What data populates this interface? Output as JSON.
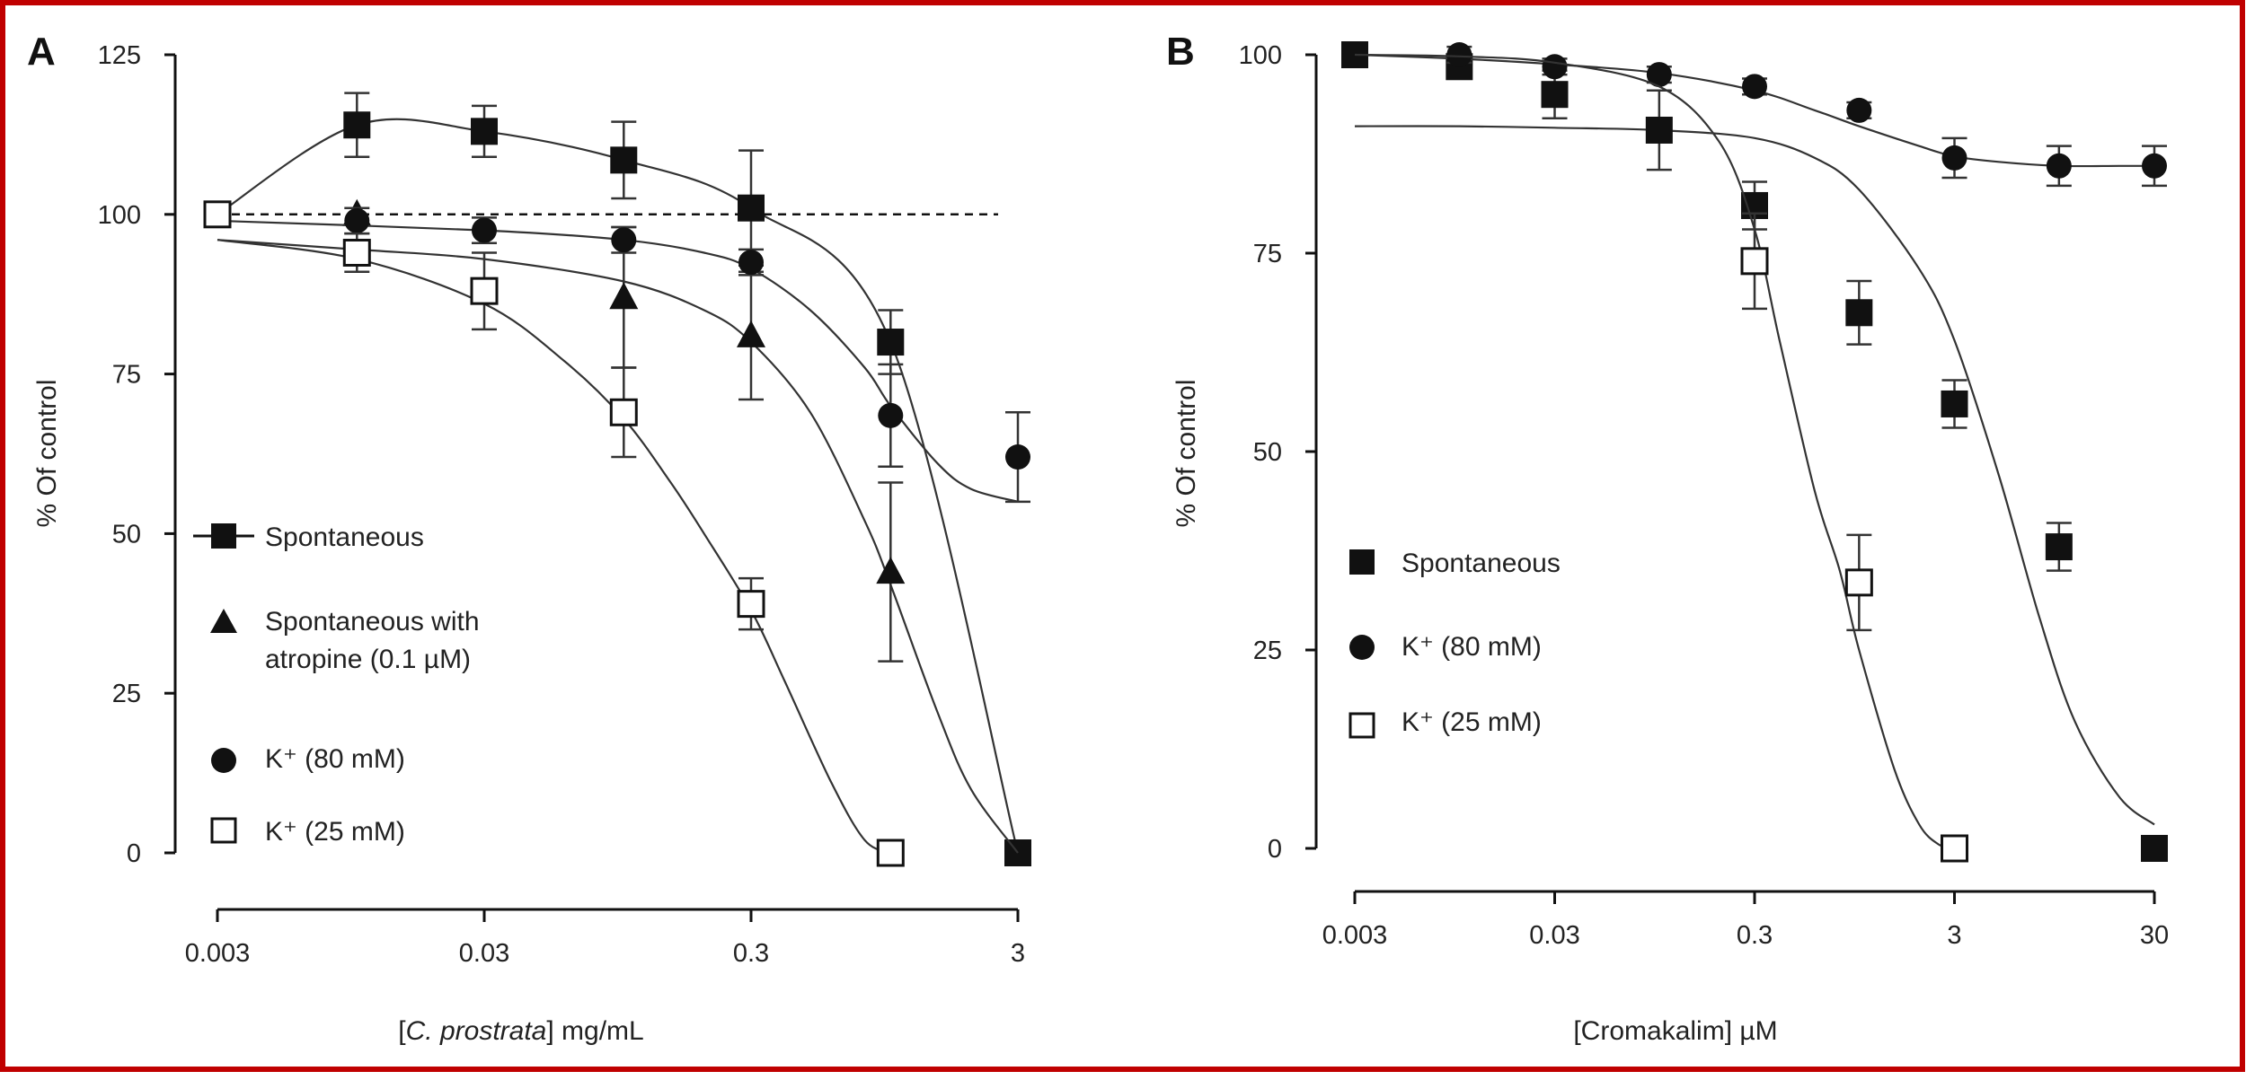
{
  "figure": {
    "frame_color": "#c00000",
    "ink_color": "#111111"
  },
  "chart_data": [
    {
      "panel": "A",
      "type": "scatter",
      "xscale": "log",
      "xlabel_parts": [
        "[",
        "C. prostrata",
        "] mg/mL"
      ],
      "ylabel": "% Of control",
      "xlim": [
        0.003,
        3
      ],
      "ylim": [
        0,
        125
      ],
      "x_ticks": [
        0.003,
        0.03,
        0.3,
        3
      ],
      "x_tick_labels": [
        "0.003",
        "0.03",
        "0.3",
        "3"
      ],
      "y_ticks": [
        0,
        25,
        50,
        75,
        100,
        125
      ],
      "y_tick_labels": [
        "0",
        "25",
        "50",
        "75",
        "100",
        "125"
      ],
      "reference_line": {
        "y": 100,
        "style": "dashed"
      },
      "legend_position": "left",
      "series": [
        {
          "name": "Spontaneous",
          "marker": "square-filled",
          "line": "connected",
          "x": [
            0.003,
            0.01,
            0.03,
            0.1,
            0.3,
            1,
            3
          ],
          "y": [
            100,
            114,
            113,
            108.5,
            101,
            80,
            0
          ],
          "err": [
            0,
            5,
            4,
            6,
            9,
            5,
            0
          ],
          "fit_x": [
            0.003,
            0.03,
            0.1,
            0.3,
            0.5,
            0.8,
            1,
            1.4,
            2,
            2.5,
            3
          ]
        },
        {
          "name_lines": [
            "Spontaneous with",
            "atropine (0.1 µM)"
          ],
          "marker": "triangle-filled",
          "line": "fit",
          "x": [
            0.01,
            0.1,
            0.3,
            1
          ],
          "y": [
            100,
            87,
            81,
            44
          ],
          "err": [
            0,
            11,
            10,
            14
          ],
          "fit_x": [
            0.003,
            0.01,
            0.03,
            0.1,
            0.2,
            0.3,
            0.5,
            0.8,
            1,
            1.5,
            2,
            3
          ],
          "fit_y": [
            96,
            94.5,
            93,
            89.5,
            85,
            80,
            69,
            52,
            42,
            22,
            10,
            0
          ]
        },
        {
          "name": "K⁺ (80 mM)",
          "marker": "circle-filled",
          "line": "fit",
          "x": [
            0.01,
            0.03,
            0.1,
            0.3,
            1,
            3
          ],
          "y": [
            99,
            97.5,
            96,
            92.5,
            68.5,
            62
          ],
          "err": [
            2,
            2,
            2,
            2,
            8,
            7
          ],
          "fit_x": [
            0.003,
            0.03,
            0.1,
            0.2,
            0.3,
            0.5,
            0.8,
            1,
            1.5,
            2,
            3
          ],
          "fit_y": [
            99,
            97.5,
            96,
            94,
            91.5,
            85,
            76,
            70,
            61,
            57,
            55
          ]
        },
        {
          "name": "K⁺ (25 mM)",
          "marker": "square-open",
          "line": "fit",
          "x": [
            0.003,
            0.01,
            0.03,
            0.1,
            0.3,
            1
          ],
          "y": [
            100,
            94,
            88,
            69,
            39,
            0
          ],
          "err": [
            0,
            3,
            6,
            7,
            4,
            0
          ],
          "fit_x": [
            0.003,
            0.01,
            0.03,
            0.06,
            0.1,
            0.15,
            0.2,
            0.3,
            0.4,
            0.6,
            0.8,
            1
          ],
          "fit_y": [
            96,
            93,
            86,
            77,
            68,
            58,
            50,
            38,
            27,
            11,
            2,
            0
          ]
        }
      ]
    },
    {
      "panel": "B",
      "type": "scatter",
      "xscale": "log",
      "xlabel": "[Cromakalim] µM",
      "ylabel": "% Of control",
      "xlim": [
        0.003,
        30
      ],
      "ylim": [
        0,
        100
      ],
      "x_ticks": [
        0.003,
        0.03,
        0.3,
        3,
        30
      ],
      "x_tick_labels": [
        "0.003",
        "0.03",
        "0.3",
        "3",
        "30"
      ],
      "y_ticks": [
        0,
        25,
        50,
        75,
        100
      ],
      "y_tick_labels": [
        "0",
        "25",
        "50",
        "75",
        "100"
      ],
      "legend_position": "left",
      "series": [
        {
          "name": "Spontaneous",
          "marker": "square-filled",
          "line": "fit",
          "x": [
            0.003,
            0.01,
            0.03,
            0.1,
            0.3,
            1,
            3,
            10,
            30
          ],
          "y": [
            100,
            98.5,
            95,
            90.5,
            81,
            67.5,
            56,
            38,
            0
          ],
          "err": [
            0,
            1.5,
            3,
            5,
            3,
            4,
            3,
            3,
            0
          ],
          "fit_x": [
            0.003,
            0.01,
            0.03,
            0.1,
            0.3,
            0.6,
            1,
            2,
            3,
            5,
            8,
            12,
            20,
            30
          ],
          "fit_y": [
            91,
            91,
            90.8,
            90.5,
            89.5,
            87,
            83,
            73,
            64,
            47,
            29,
            16,
            6.5,
            3
          ]
        },
        {
          "name": "K⁺ (80 mM)",
          "marker": "circle-filled",
          "line": "fit",
          "x": [
            0.003,
            0.01,
            0.03,
            0.1,
            0.3,
            1,
            3,
            10,
            30
          ],
          "y": [
            100,
            100,
            98.5,
            97.5,
            96,
            93,
            87,
            86,
            86
          ],
          "err": [
            0,
            1,
            1,
            1,
            1,
            1,
            2.5,
            2.5,
            2.5
          ],
          "fit_x": [
            0.003,
            0.01,
            0.03,
            0.1,
            0.3,
            0.6,
            1,
            2,
            3,
            5,
            10,
            20,
            30
          ],
          "fit_y": [
            100,
            99.5,
            98.8,
            97.7,
            95.5,
            93,
            91,
            88.5,
            87.2,
            86.5,
            86,
            86,
            86
          ]
        },
        {
          "name": "K⁺ (25 mM)",
          "marker": "square-open",
          "line": "fit",
          "x": [
            0.3,
            1,
            3
          ],
          "y": [
            74,
            33.5,
            0
          ],
          "err": [
            6,
            6,
            0
          ],
          "fit_x": [
            0.003,
            0.01,
            0.03,
            0.1,
            0.2,
            0.3,
            0.4,
            0.6,
            0.8,
            1,
            1.5,
            2,
            2.5,
            3
          ],
          "fit_y": [
            100,
            99.8,
            99,
            96,
            89,
            78,
            64,
            45,
            35,
            25,
            10,
            3,
            0.5,
            0
          ]
        }
      ]
    }
  ]
}
